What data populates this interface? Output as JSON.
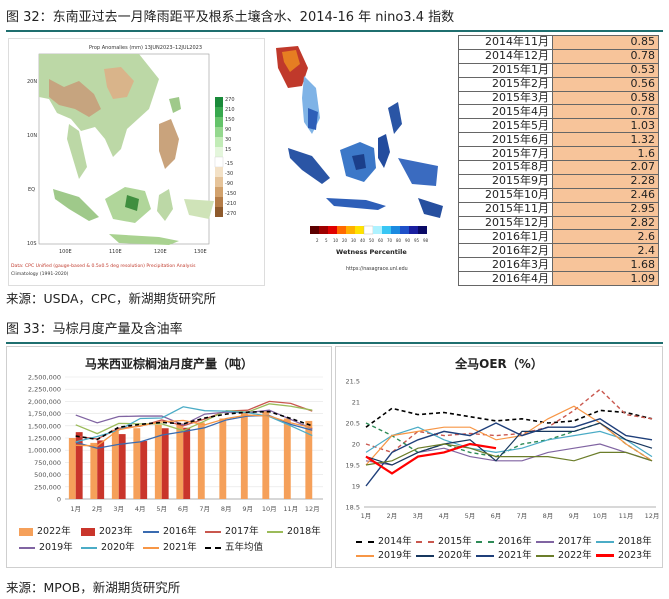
{
  "fig32": {
    "title": "图 32：东南亚过去一月降雨距平及根系土壤含水、2014-16 年 nino3.4 指数",
    "map1": {
      "title": "Prop Anomalies (mm) 13JUN2023–12JUL2023",
      "lat_labels": [
        "20N",
        "10N",
        "EQ",
        "10S"
      ],
      "lon_labels": [
        "100E",
        "110E",
        "120E",
        "130E"
      ],
      "scale": [
        "270",
        "210",
        "150",
        "90",
        "30",
        "15",
        "-15",
        "-30",
        "-90",
        "-150",
        "-210",
        "-270"
      ],
      "footer1": "Data: CPC Unified (gauge-based & 0.5x0.5 deg resolution) Precipitation Analysis",
      "footer2": "Climatology (1991-2020)"
    },
    "map2": {
      "legend_title": "Wetness Percentile",
      "legend_ticks": [
        "2",
        "5",
        "10",
        "20",
        "30",
        "40",
        "50",
        "60",
        "70",
        "80",
        "90",
        "95",
        "98"
      ],
      "url": "https://nasagrace.unl.edu"
    },
    "nino_table": [
      {
        "month": "2014年11月",
        "value": "0.85"
      },
      {
        "month": "2014年12月",
        "value": "0.78"
      },
      {
        "month": "2015年1月",
        "value": "0.53"
      },
      {
        "month": "2015年2月",
        "value": "0.56"
      },
      {
        "month": "2015年3月",
        "value": "0.58"
      },
      {
        "month": "2015年4月",
        "value": "0.78"
      },
      {
        "month": "2015年5月",
        "value": "1.03"
      },
      {
        "month": "2015年6月",
        "value": "1.32"
      },
      {
        "month": "2015年7月",
        "value": "1.6"
      },
      {
        "month": "2015年8月",
        "value": "2.07"
      },
      {
        "month": "2015年9月",
        "value": "2.28"
      },
      {
        "month": "2015年10月",
        "value": "2.46"
      },
      {
        "month": "2015年11月",
        "value": "2.95"
      },
      {
        "month": "2015年12月",
        "value": "2.82"
      },
      {
        "month": "2016年1月",
        "value": "2.6"
      },
      {
        "month": "2016年2月",
        "value": "2.4"
      },
      {
        "month": "2016年3月",
        "value": "1.68"
      },
      {
        "month": "2016年4月",
        "value": "1.09"
      }
    ],
    "source": "来源：USDA，CPC，新湖期货研究所"
  },
  "fig33": {
    "title": "图 33：马棕月度产量及含油率",
    "source": "来源：MPOB，新湖期货研究所"
  },
  "colors": {
    "rule": "#1f6f6f",
    "table_value_bg": "#f7c49a"
  },
  "chart_data": [
    {
      "type": "bar",
      "title": "马来西亚棕榈油月度产量（吨）",
      "categories": [
        "1月",
        "2月",
        "3月",
        "4月",
        "5月",
        "6月",
        "7月",
        "8月",
        "9月",
        "10月",
        "11月",
        "12月"
      ],
      "ylim": [
        0,
        2500000
      ],
      "yticks": [
        "0",
        "250,000",
        "500,000",
        "750,000",
        "1,000,000",
        "1,250,000",
        "1,500,000",
        "1,750,000",
        "2,000,000",
        "2,250,000",
        "2,500,000"
      ],
      "bar_series": [
        {
          "name": "2022年",
          "color": "#f5a05a",
          "values": [
            1250000,
            1150000,
            1420000,
            1450000,
            1520000,
            1550000,
            1570000,
            1650000,
            1770000,
            1800000,
            1650000,
            1600000
          ]
        },
        {
          "name": "2023年",
          "color": "#c9352b",
          "values": [
            1370000,
            1200000,
            1330000,
            1190000,
            1450000,
            1460000,
            null,
            null,
            null,
            null,
            null,
            null
          ]
        }
      ],
      "line_series": [
        {
          "name": "2016年",
          "color": "#3a6bb0",
          "dash": "",
          "values": [
            1160000,
            1040000,
            1120000,
            1170000,
            1310000,
            1380000,
            1460000,
            1620000,
            1700000,
            1710000,
            1530000,
            1410000
          ]
        },
        {
          "name": "2017年",
          "color": "#c9574e",
          "dash": "",
          "values": [
            1290000,
            1230000,
            1450000,
            1490000,
            1620000,
            1500000,
            1640000,
            1800000,
            1820000,
            2000000,
            1960000,
            1800000
          ]
        },
        {
          "name": "2018年",
          "color": "#9bbb59",
          "dash": "",
          "values": [
            1520000,
            1340000,
            1550000,
            1540000,
            1540000,
            1400000,
            1600000,
            1810000,
            1780000,
            1950000,
            1900000,
            1820000
          ]
        },
        {
          "name": "2019年",
          "color": "#8064a2",
          "dash": "",
          "values": [
            1720000,
            1560000,
            1690000,
            1700000,
            1700000,
            1520000,
            1740000,
            1780000,
            1770000,
            1820000,
            1630000,
            1440000
          ]
        },
        {
          "name": "2020年",
          "color": "#4bacc6",
          "dash": "",
          "values": [
            1170000,
            1280000,
            1410000,
            1650000,
            1660000,
            1890000,
            1810000,
            1800000,
            1770000,
            1690000,
            1500000,
            1300000
          ]
        },
        {
          "name": "2021年",
          "color": "#f79646",
          "dash": "",
          "values": [
            1100000,
            1090000,
            1420000,
            1500000,
            1580000,
            1610000,
            1520000,
            1650000,
            1720000,
            1700000,
            1560000,
            1460000
          ]
        },
        {
          "name": "五年均值",
          "color": "#000000",
          "dash": "4,3",
          "values": [
            1290000,
            1220000,
            1470000,
            1530000,
            1570000,
            1540000,
            1660000,
            1740000,
            1780000,
            1790000,
            1650000,
            1500000
          ]
        }
      ]
    },
    {
      "type": "line",
      "title": "全马OER（%）",
      "categories": [
        "1月",
        "2月",
        "3月",
        "4月",
        "5月",
        "6月",
        "7月",
        "8月",
        "9月",
        "10月",
        "11月",
        "12月"
      ],
      "ylim": [
        18.5,
        21.5
      ],
      "yticks": [
        "18.5",
        "19",
        "19.5",
        "20",
        "20.5",
        "21",
        "21.5"
      ],
      "series": [
        {
          "name": "2014年",
          "color": "#000000",
          "dash": "4,3",
          "width": 1.6,
          "values": [
            20.4,
            20.85,
            20.7,
            20.75,
            20.65,
            20.55,
            20.6,
            20.5,
            20.55,
            20.8,
            20.75,
            20.6
          ]
        },
        {
          "name": "2015年",
          "color": "#c9574e",
          "dash": "4,3",
          "width": 1.4,
          "values": [
            20.0,
            19.8,
            20.3,
            20.2,
            20.25,
            20.2,
            20.25,
            20.4,
            20.8,
            21.3,
            20.7,
            20.6
          ]
        },
        {
          "name": "2016年",
          "color": "#2e8b57",
          "dash": "4,3",
          "width": 1.4,
          "values": [
            20.5,
            20.2,
            19.8,
            20.0,
            19.8,
            19.7,
            20.0,
            20.1,
            20.3,
            20.5,
            20.0,
            19.6
          ]
        },
        {
          "name": "2017年",
          "color": "#8064a2",
          "dash": "",
          "width": 1.2,
          "values": [
            19.6,
            19.5,
            19.8,
            19.9,
            19.7,
            19.6,
            19.6,
            19.8,
            19.9,
            20.0,
            19.8,
            19.6
          ]
        },
        {
          "name": "2018年",
          "color": "#4bacc6",
          "dash": "",
          "width": 1.2,
          "values": [
            19.8,
            20.2,
            20.4,
            20.1,
            19.9,
            19.8,
            19.9,
            20.1,
            20.2,
            20.3,
            20.1,
            19.7
          ]
        },
        {
          "name": "2019年",
          "color": "#f79646",
          "dash": "",
          "width": 1.2,
          "values": [
            19.5,
            20.2,
            20.3,
            20.4,
            20.4,
            20.1,
            20.2,
            20.6,
            20.9,
            20.5,
            20.0,
            19.6
          ]
        },
        {
          "name": "2020年",
          "color": "#17375e",
          "dash": "",
          "width": 1.2,
          "values": [
            19.7,
            19.5,
            19.8,
            20.0,
            20.1,
            19.6,
            20.3,
            20.3,
            20.3,
            20.5,
            20.1,
            19.9
          ]
        },
        {
          "name": "2021年",
          "color": "#1f3f7a",
          "dash": "",
          "width": 1.4,
          "values": [
            19.0,
            19.8,
            20.1,
            20.3,
            20.2,
            20.5,
            20.2,
            20.4,
            20.4,
            20.6,
            20.2,
            20.1
          ]
        },
        {
          "name": "2022年",
          "color": "#6b7d2a",
          "dash": "",
          "width": 1.2,
          "values": [
            19.5,
            19.6,
            19.9,
            20.0,
            19.9,
            19.7,
            19.7,
            19.7,
            19.6,
            19.8,
            19.8,
            19.6
          ]
        },
        {
          "name": "2023年",
          "color": "#ff0000",
          "dash": "",
          "width": 2.2,
          "values": [
            19.7,
            19.3,
            19.7,
            19.8,
            20.0,
            19.9,
            null,
            null,
            null,
            null,
            null,
            null
          ]
        }
      ]
    }
  ]
}
